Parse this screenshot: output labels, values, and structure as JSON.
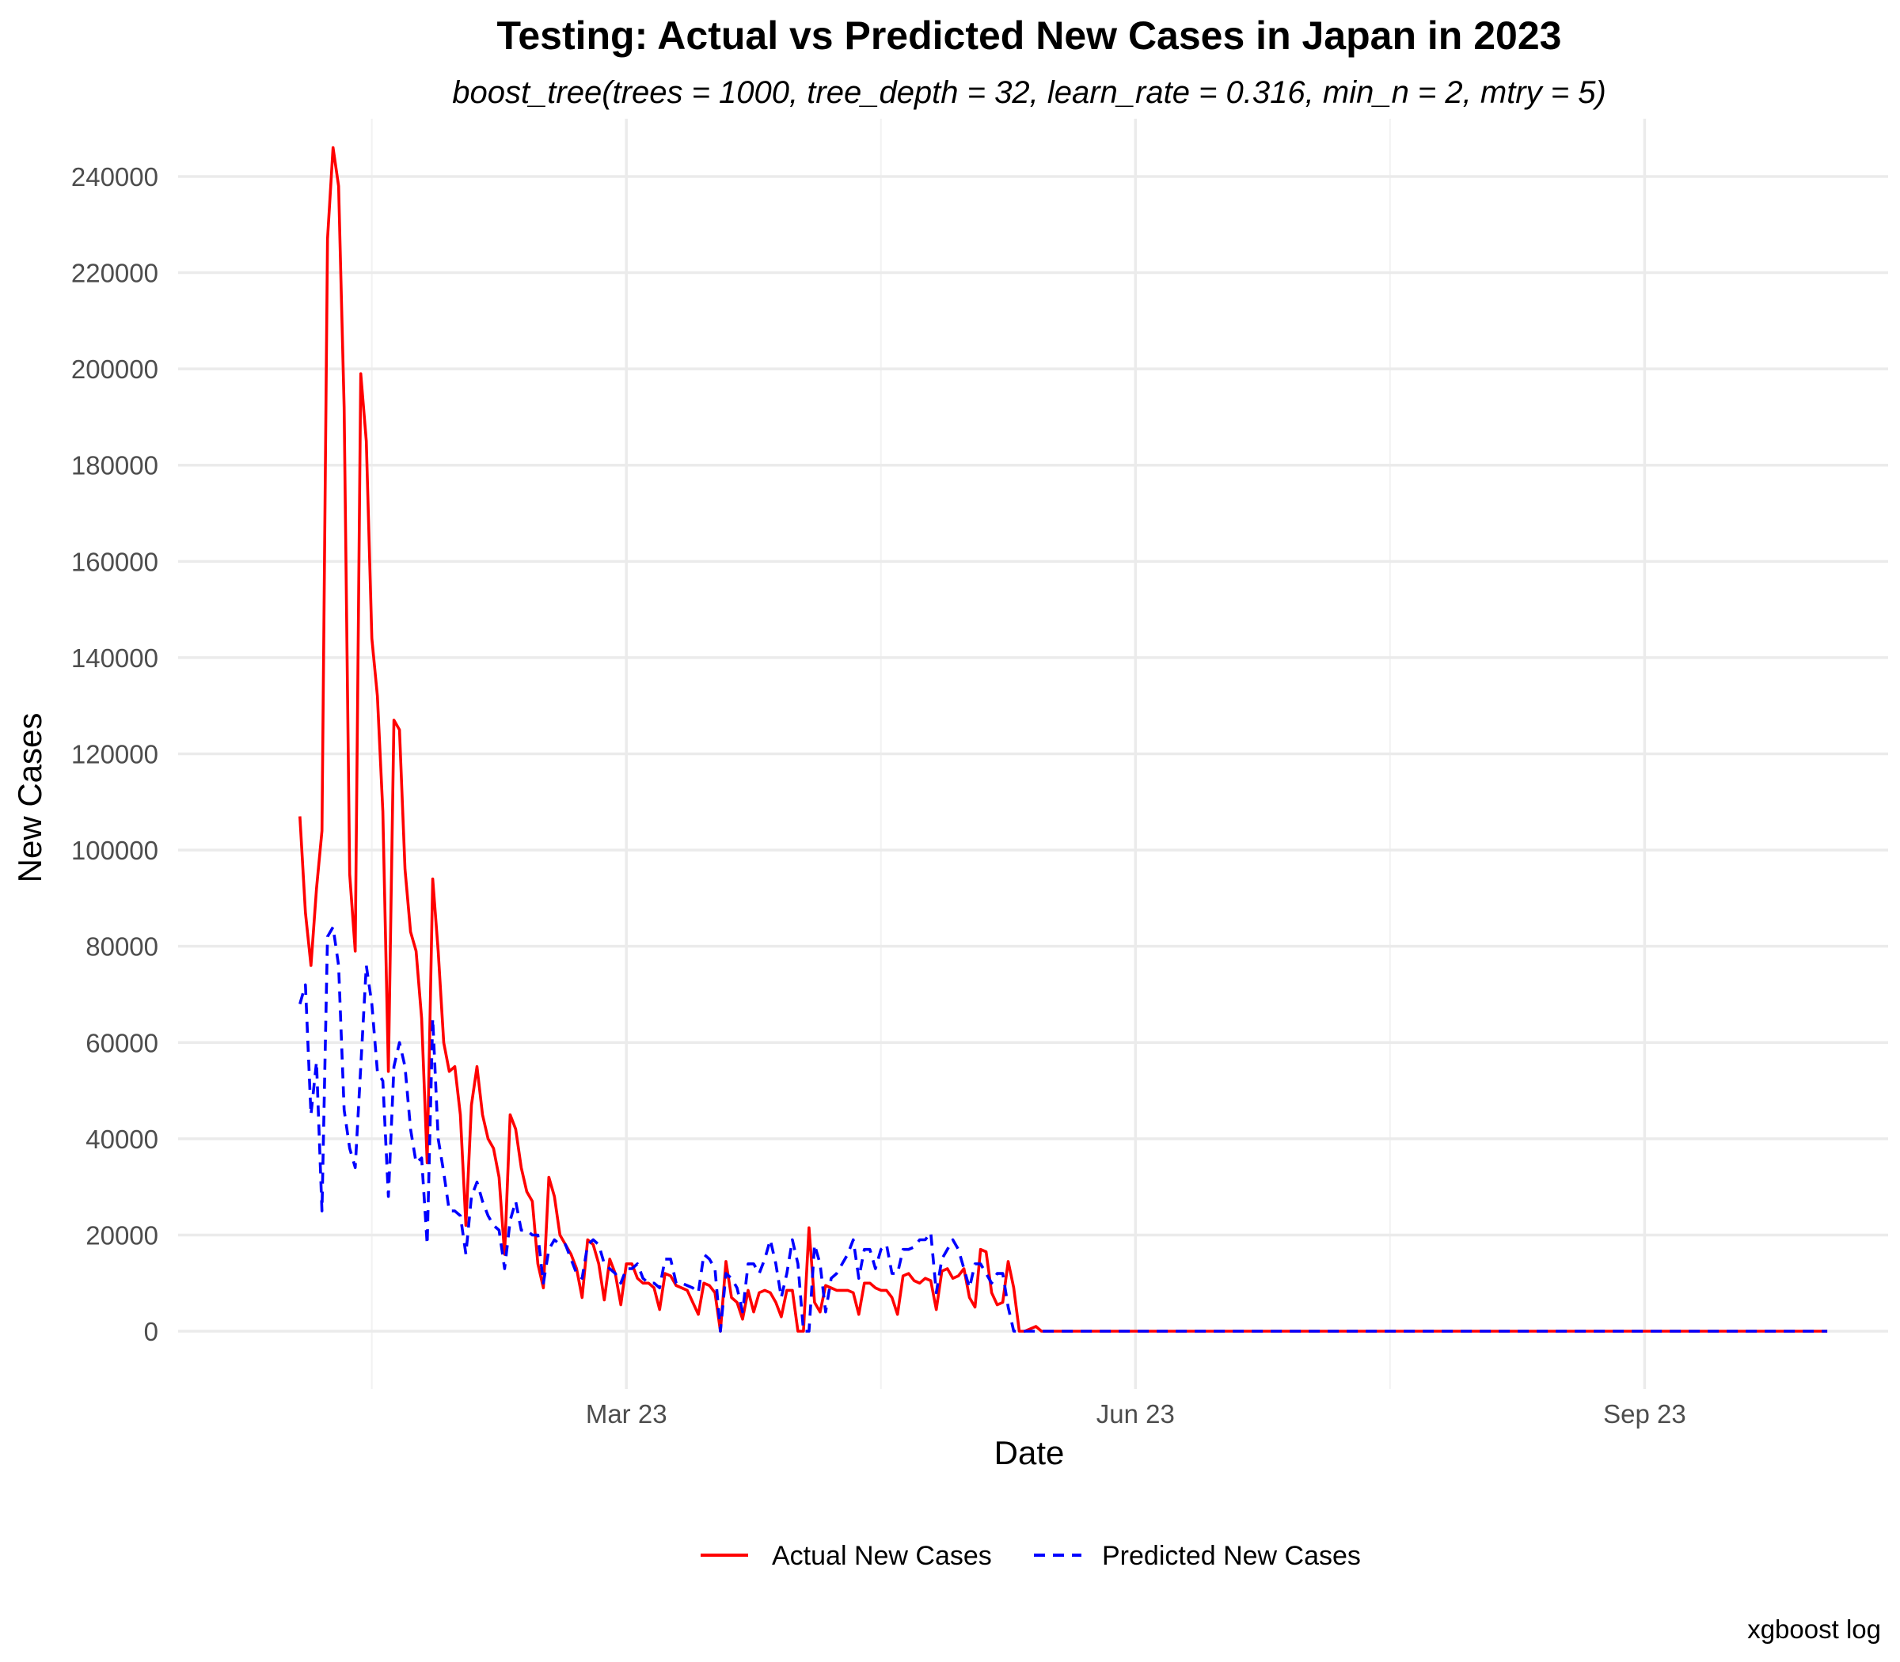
{
  "chart_data": {
    "type": "line",
    "title": "Testing: Actual vs Predicted New Cases in Japan in 2023",
    "subtitle": "boost_tree(trees = 1000, tree_depth = 32, learn_rate = 0.316, min_n = 2, mtry = 5)",
    "xlabel": "Date",
    "ylabel": "New Cases",
    "caption": "xgboost log",
    "x_range": [
      "2022-12-10",
      "2023-10-15"
    ],
    "ylim": [
      -12000,
      252000
    ],
    "y_ticks": [
      0,
      20000,
      40000,
      60000,
      80000,
      100000,
      120000,
      140000,
      160000,
      180000,
      200000,
      220000,
      240000
    ],
    "y_tick_labels": [
      "0",
      "20000",
      "40000",
      "60000",
      "80000",
      "100000",
      "120000",
      "140000",
      "160000",
      "180000",
      "200000",
      "220000",
      "240000"
    ],
    "x_ticks": [
      "2023-03-01",
      "2023-06-01",
      "2023-09-01"
    ],
    "x_tick_labels": [
      "Mar 23",
      "Jun 23",
      "Sep 23"
    ],
    "grid": true,
    "legend_position": "bottom",
    "x_start": "2023-01-01",
    "x_end": "2023-10-04",
    "series": [
      {
        "name": "Actual New Cases",
        "color": "#ff0000",
        "dash": "solid",
        "values": [
          107000,
          87000,
          76000,
          92000,
          104000,
          227000,
          246000,
          238000,
          192000,
          95000,
          79000,
          199000,
          185000,
          144000,
          132000,
          108000,
          54000,
          127000,
          125000,
          96000,
          83000,
          79000,
          65000,
          35000,
          94000,
          79000,
          60000,
          54000,
          55000,
          45000,
          22000,
          47000,
          55000,
          45000,
          40000,
          38000,
          32000,
          16000,
          45000,
          42000,
          34000,
          29000,
          27000,
          14000,
          9000,
          32000,
          28000,
          20000,
          18000,
          16000,
          13000,
          7000,
          19000,
          18000,
          14000,
          6500,
          15000,
          12000,
          5500,
          14000,
          14000,
          11000,
          10000,
          10000,
          9000,
          4500,
          12000,
          11500,
          9500,
          9000,
          8500,
          6000,
          3500,
          10000,
          9500,
          8000,
          0,
          14500,
          7000,
          6000,
          2500,
          8500,
          4000,
          8000,
          8500,
          8000,
          6000,
          3000,
          8500,
          8500,
          0,
          0,
          21500,
          6000,
          4000,
          9500,
          9000,
          8500,
          8500,
          8500,
          8000,
          3500,
          10000,
          10000,
          9000,
          8500,
          8500,
          7000,
          3500,
          11500,
          12000,
          10500,
          10000,
          11000,
          10500,
          4500,
          12500,
          13000,
          11000,
          11500,
          13000,
          7000,
          5000,
          17000,
          16500,
          8000,
          5500,
          6000,
          14500,
          9000,
          0,
          0,
          500,
          1000,
          0,
          0,
          0,
          0,
          0,
          0,
          0,
          0,
          0,
          0,
          0,
          0,
          0,
          0,
          0,
          0,
          0,
          0,
          0,
          0,
          0,
          0,
          0,
          0,
          0,
          0,
          0,
          0,
          0,
          0,
          0,
          0,
          0,
          0,
          0,
          0,
          0,
          0,
          0,
          0,
          0,
          0,
          0,
          0,
          0,
          0,
          0,
          0,
          0,
          0,
          0,
          0,
          0,
          0,
          0,
          0,
          0,
          0,
          0,
          0,
          0,
          0,
          0,
          0,
          0,
          0,
          0,
          0,
          0,
          0,
          0,
          0,
          0,
          0,
          0,
          0,
          0,
          0,
          0,
          0,
          0,
          0,
          0,
          0,
          0,
          0,
          0,
          0,
          0,
          0,
          0,
          0,
          0,
          0,
          0,
          0,
          0,
          0,
          0,
          0,
          0,
          0,
          0,
          0,
          0,
          0,
          0,
          0,
          0,
          0,
          0,
          0,
          0,
          0,
          0,
          0,
          0,
          0,
          0,
          0,
          0,
          0,
          0,
          0,
          0,
          0,
          0,
          0,
          0,
          0,
          0
        ]
      },
      {
        "name": "Predicted New Cases",
        "color": "#0000ff",
        "dash": "dashed",
        "values": [
          68000,
          72000,
          45000,
          56000,
          25000,
          82000,
          84000,
          76000,
          46000,
          38000,
          34000,
          55000,
          76000,
          68000,
          54000,
          52000,
          28000,
          55000,
          60000,
          55000,
          42000,
          35000,
          36000,
          18000,
          65000,
          40000,
          33000,
          25000,
          25000,
          24000,
          16000,
          28000,
          31000,
          27000,
          24000,
          22000,
          21000,
          13000,
          23000,
          27000,
          21000,
          21000,
          20000,
          20000,
          10000,
          17000,
          19000,
          18000,
          18000,
          15000,
          12000,
          11000,
          18000,
          19000,
          18000,
          14000,
          13000,
          12000,
          10000,
          13000,
          13000,
          14000,
          11000,
          10000,
          10000,
          9000,
          15000,
          15000,
          10000,
          10000,
          9500,
          9000,
          8000,
          16000,
          15000,
          13000,
          0,
          12000,
          11000,
          9000,
          4000,
          14000,
          14000,
          12000,
          15000,
          19000,
          14000,
          7000,
          12000,
          19000,
          14000,
          0,
          0,
          18000,
          14000,
          4000,
          11000,
          12000,
          14000,
          16000,
          19000,
          11000,
          17000,
          17000,
          13000,
          17000,
          18000,
          12000,
          12000,
          17000,
          17000,
          17500,
          19000,
          19000,
          20500,
          8000,
          15000,
          17000,
          19000,
          17000,
          13000,
          9000,
          14000,
          14000,
          12000,
          10000,
          12000,
          12000,
          5000,
          0,
          0,
          0,
          0,
          0,
          0,
          0,
          0,
          0,
          0,
          0,
          0,
          0,
          0,
          0,
          0,
          0,
          0,
          0,
          0,
          0,
          0,
          0,
          0,
          0,
          0,
          0,
          0,
          0,
          0,
          0,
          0,
          0,
          0,
          0,
          0,
          0,
          0,
          0,
          0,
          0,
          0,
          0,
          0,
          0,
          0,
          0,
          0,
          0,
          0,
          0,
          0,
          0,
          0,
          0,
          0,
          0,
          0,
          0,
          0,
          0,
          0,
          0,
          0,
          0,
          0,
          0,
          0,
          0,
          0,
          0,
          0,
          0,
          0,
          0,
          0,
          0,
          0,
          0,
          0,
          0,
          0,
          0,
          0,
          0,
          0,
          0,
          0,
          0,
          0,
          0,
          0,
          0,
          0,
          0,
          0,
          0,
          0,
          0,
          0,
          0,
          0,
          0,
          0,
          0,
          0,
          0,
          0,
          0,
          0,
          0,
          0,
          0,
          0,
          0,
          0,
          0,
          0,
          0,
          0,
          0,
          0,
          0,
          0,
          0,
          0,
          0,
          0,
          0,
          0,
          0,
          0,
          0,
          0,
          0,
          0,
          0,
          0,
          0,
          0,
          0,
          0,
          0,
          0,
          0,
          0,
          0,
          0
        ]
      }
    ]
  }
}
